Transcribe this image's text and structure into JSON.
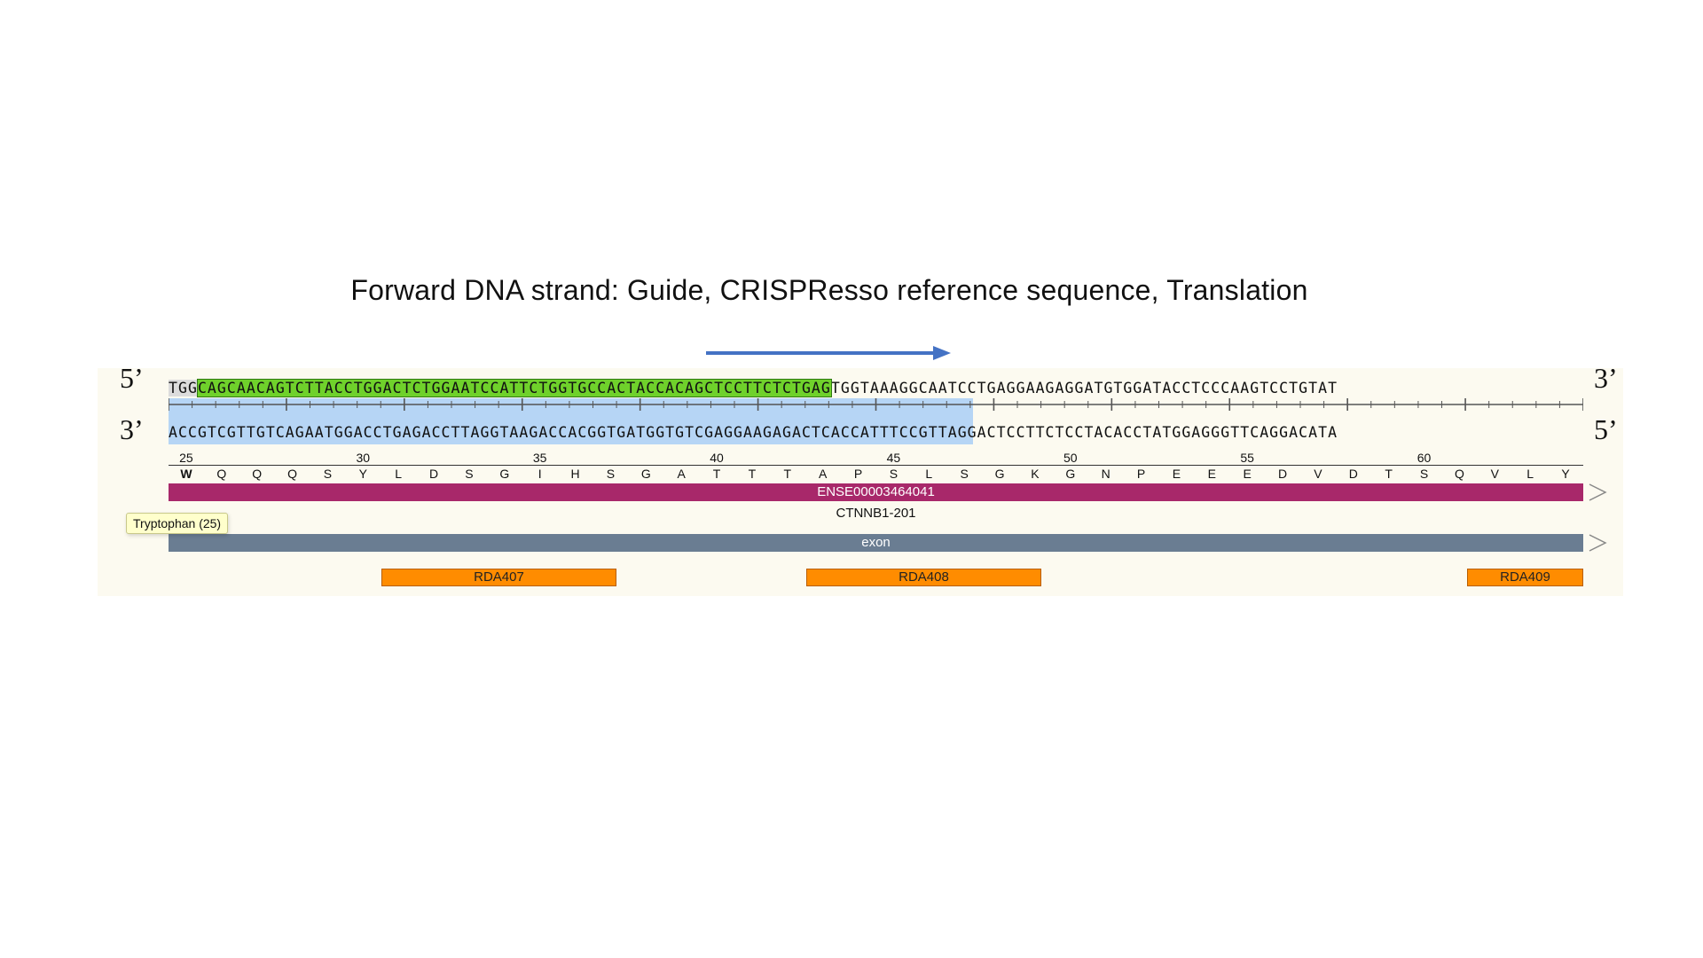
{
  "title": "Forward DNA strand: Guide, CRISPResso reference sequence, Translation",
  "labels": {
    "five_top": "5’",
    "three_top": "3’",
    "three_bottom": "3’",
    "five_bottom": "5’"
  },
  "forward_strand": {
    "gray": "TGG",
    "green": "CAGCAACAGTCTTACCTGGACTCTGGAATCCATTCTGGTGCCACTACCACAGCTCCTTCTCTGAG",
    "rest": "TGGTAAAGGCAATCCTGAGGAAGAGGATGTGGATACCTCCCAAGTCCTGTAT"
  },
  "reverse_strand": {
    "blue": "ACCGTCGTTGTCAGAATGGACCTGAGACCTTAGGTAAGACCACGGTGATGGTGTCGAGGAAGAGACTC",
    "rest": "ACCATTTCCGTTAGGACTCCTTCTCCTACACCTATGGAGGGTTCAGGACATA"
  },
  "positions": [
    "25",
    "30",
    "35",
    "40",
    "45",
    "50",
    "55",
    "60"
  ],
  "amino_acids": [
    "W",
    "Q",
    "Q",
    "Q",
    "S",
    "Y",
    "L",
    "D",
    "S",
    "G",
    "I",
    "H",
    "S",
    "G",
    "A",
    "T",
    "T",
    "T",
    "A",
    "P",
    "S",
    "L",
    "S",
    "G",
    "K",
    "G",
    "N",
    "P",
    "E",
    "E",
    "E",
    "D",
    "V",
    "D",
    "T",
    "S",
    "Q",
    "V",
    "L",
    "Y"
  ],
  "exon_track": {
    "label": "ENSE00003464041",
    "color": "#a8286a"
  },
  "transcript": "CTNNB1-201",
  "feature_track": {
    "label": "exon",
    "color": "#6a7d92"
  },
  "tooltip": "Tryptophan (25)",
  "primers": [
    "RDA407",
    "RDA408",
    "RDA409"
  ],
  "colors": {
    "guide": "#6fd12b",
    "pam": "#dcdcdc",
    "reference": "#b6d5f5",
    "arrow": "#4472c4",
    "primer": "#ff8c00"
  }
}
